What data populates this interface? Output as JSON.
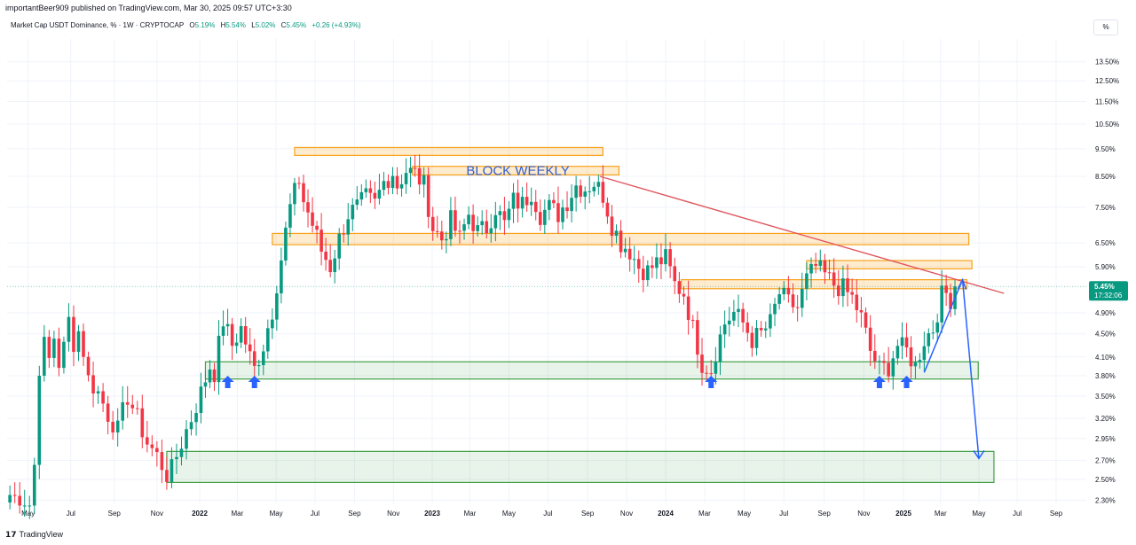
{
  "publish_line": "importantBeer909 published on TradingView.com, Mar 30, 2025 09:57 UTC+3:30",
  "legend": {
    "title": "Market Cap USDT Dominance, % · 1W · CRYPTOCAP",
    "o_label": "O",
    "o": "5.19%",
    "h_label": "H",
    "h": "5.54%",
    "l_label": "L",
    "l": "5.02%",
    "c_label": "C",
    "c": "5.45%",
    "change": "+0.26 (+4.93%)"
  },
  "scale_button": "%",
  "footer_brand": "TradingView",
  "colors": {
    "up": "#089981",
    "down": "#f23645",
    "zone_orange": "#f7a21b",
    "zone_green": "#43a047",
    "trendline": "#e0575f",
    "arrow_blue": "#2962ff",
    "price_label_bg": "#089981"
  },
  "chart_data": {
    "type": "candlestick",
    "title": "Market Cap USDT Dominance, % · 1W · CRYPTOCAP",
    "interval": "1W",
    "y_scale": "log",
    "ylim": [
      2.27,
      14.8
    ],
    "y_ticks": [
      "13.50%",
      "12.50%",
      "11.50%",
      "10.50%",
      "9.50%",
      "8.50%",
      "7.50%",
      "6.50%",
      "5.90%",
      "4.90%",
      "4.50%",
      "4.10%",
      "3.80%",
      "3.50%",
      "3.20%",
      "2.95%",
      "2.70%",
      "2.50%",
      "2.30%"
    ],
    "x_ticks": [
      "May",
      "Jul",
      "Sep",
      "Nov",
      "2022",
      "Mar",
      "May",
      "Jul",
      "Sep",
      "Nov",
      "2023",
      "Mar",
      "May",
      "Jul",
      "Sep",
      "Nov",
      "2024",
      "Mar",
      "May",
      "Jul",
      "Sep",
      "Nov",
      "2025",
      "Mar",
      "May",
      "Jul",
      "Sep"
    ],
    "last_price_label": "5.45%",
    "countdown_label": "17:32:06",
    "last_price": 5.45,
    "annotation": "BLOCK WEEKLY",
    "close_path": [
      [
        "2021-04-05",
        2.35
      ],
      [
        "2021-04-26",
        2.28
      ],
      [
        "2021-05-03",
        2.2
      ],
      [
        "2021-05-10",
        2.65
      ],
      [
        "2021-05-17",
        3.95
      ],
      [
        "2021-05-24",
        4.3
      ],
      [
        "2021-05-31",
        4.05
      ],
      [
        "2021-06-07",
        4.45
      ],
      [
        "2021-06-14",
        4.0
      ],
      [
        "2021-06-21",
        4.25
      ],
      [
        "2021-06-28",
        4.75
      ],
      [
        "2021-07-05",
        4.35
      ],
      [
        "2021-07-12",
        4.55
      ],
      [
        "2021-07-19",
        4.2
      ],
      [
        "2021-07-26",
        3.75
      ],
      [
        "2021-08-09",
        3.55
      ],
      [
        "2021-08-23",
        3.25
      ],
      [
        "2021-09-06",
        3.05
      ],
      [
        "2021-09-20",
        3.5
      ],
      [
        "2021-10-04",
        3.2
      ],
      [
        "2021-10-18",
        2.9
      ],
      [
        "2021-11-01",
        2.75
      ],
      [
        "2021-11-15",
        2.55
      ],
      [
        "2021-11-22",
        2.6
      ],
      [
        "2021-12-06",
        2.9
      ],
      [
        "2021-12-20",
        3.2
      ],
      [
        "2022-01-03",
        3.55
      ],
      [
        "2022-01-17",
        3.95
      ],
      [
        "2022-01-24",
        3.85
      ],
      [
        "2022-02-07",
        4.75
      ],
      [
        "2022-02-21",
        4.3
      ],
      [
        "2022-03-07",
        4.6
      ],
      [
        "2022-03-21",
        4.1
      ],
      [
        "2022-03-28",
        3.9
      ],
      [
        "2022-04-11",
        4.3
      ],
      [
        "2022-04-25",
        4.95
      ],
      [
        "2022-05-09",
        6.1
      ],
      [
        "2022-05-16",
        6.8
      ],
      [
        "2022-05-23",
        7.5
      ],
      [
        "2022-06-06",
        8.4
      ],
      [
        "2022-06-13",
        7.7
      ],
      [
        "2022-06-27",
        7.0
      ],
      [
        "2022-07-11",
        6.3
      ],
      [
        "2022-07-25",
        5.9
      ],
      [
        "2022-08-08",
        6.6
      ],
      [
        "2022-08-22",
        7.3
      ],
      [
        "2022-09-05",
        7.5
      ],
      [
        "2022-09-19",
        7.8
      ],
      [
        "2022-10-03",
        7.6
      ],
      [
        "2022-10-17",
        8.3
      ],
      [
        "2022-10-31",
        8.65
      ],
      [
        "2022-11-07",
        8.2
      ],
      [
        "2022-11-21",
        8.7
      ],
      [
        "2022-12-05",
        8.6
      ],
      [
        "2022-12-19",
        8.2
      ],
      [
        "2023-01-02",
        6.9
      ],
      [
        "2023-01-16",
        6.6
      ],
      [
        "2023-01-30",
        7.1
      ],
      [
        "2023-02-13",
        6.6
      ],
      [
        "2023-02-27",
        7.3
      ],
      [
        "2023-03-13",
        6.8
      ],
      [
        "2023-03-27",
        6.9
      ],
      [
        "2023-04-10",
        7.5
      ],
      [
        "2023-04-24",
        7.0
      ],
      [
        "2023-05-08",
        7.7
      ],
      [
        "2023-05-22",
        7.6
      ],
      [
        "2023-06-05",
        8.0
      ],
      [
        "2023-06-19",
        7.3
      ],
      [
        "2023-07-03",
        7.5
      ],
      [
        "2023-07-17",
        7.3
      ],
      [
        "2023-07-31",
        7.7
      ],
      [
        "2023-08-14",
        8.2
      ],
      [
        "2023-08-28",
        8.1
      ],
      [
        "2023-09-11",
        8.3
      ],
      [
        "2023-09-25",
        7.9
      ],
      [
        "2023-10-09",
        7.0
      ],
      [
        "2023-10-23",
        6.5
      ],
      [
        "2023-11-06",
        6.3
      ],
      [
        "2023-11-20",
        5.9
      ],
      [
        "2023-12-04",
        5.8
      ],
      [
        "2023-12-18",
        6.0
      ],
      [
        "2024-01-01",
        6.1
      ],
      [
        "2024-01-15",
        5.5
      ],
      [
        "2024-01-29",
        5.3
      ],
      [
        "2024-02-12",
        4.6
      ],
      [
        "2024-02-26",
        4.0
      ],
      [
        "2024-03-11",
        3.9
      ],
      [
        "2024-03-18",
        4.2
      ],
      [
        "2024-04-01",
        4.7
      ],
      [
        "2024-04-15",
        4.9
      ],
      [
        "2024-04-29",
        4.7
      ],
      [
        "2024-05-13",
        4.4
      ],
      [
        "2024-05-27",
        4.5
      ],
      [
        "2024-06-10",
        4.7
      ],
      [
        "2024-06-24",
        5.3
      ],
      [
        "2024-07-08",
        5.1
      ],
      [
        "2024-07-22",
        5.0
      ],
      [
        "2024-08-05",
        5.6
      ],
      [
        "2024-08-19",
        5.9
      ],
      [
        "2024-09-02",
        5.7
      ],
      [
        "2024-09-16",
        5.5
      ],
      [
        "2024-09-30",
        5.4
      ],
      [
        "2024-10-14",
        5.2
      ],
      [
        "2024-10-28",
        4.8
      ],
      [
        "2024-11-11",
        4.2
      ],
      [
        "2024-11-25",
        3.9
      ],
      [
        "2024-12-09",
        3.95
      ],
      [
        "2024-12-23",
        4.3
      ],
      [
        "2025-01-06",
        4.2
      ],
      [
        "2025-01-20",
        3.95
      ],
      [
        "2025-02-03",
        4.4
      ],
      [
        "2025-02-17",
        4.6
      ],
      [
        "2025-03-03",
        5.25
      ],
      [
        "2025-03-10",
        5.3
      ],
      [
        "2025-03-17",
        5.19
      ],
      [
        "2025-03-24",
        5.45
      ]
    ],
    "resistance_zones": [
      {
        "from": "2022-05-30",
        "to": "2023-09-25",
        "y": [
          9.25,
          9.55
        ]
      },
      {
        "from": "2022-12-01",
        "to": "2023-10-20",
        "y": [
          8.55,
          8.85
        ]
      },
      {
        "from": "2022-04-25",
        "to": "2025-04-15",
        "y": [
          6.45,
          6.75
        ]
      },
      {
        "from": "2024-08-05",
        "to": "2025-04-20",
        "y": [
          5.85,
          6.05
        ]
      },
      {
        "from": "2024-01-25",
        "to": "2025-04-12",
        "y": [
          5.4,
          5.6
        ]
      }
    ],
    "support_zones": [
      {
        "from": "2022-01-10",
        "to": "2025-04-30",
        "y": [
          3.75,
          4.02
        ]
      },
      {
        "from": "2021-11-15",
        "to": "2025-05-25",
        "y": [
          2.47,
          2.8
        ]
      }
    ],
    "trendline": [
      [
        "2023-09-20",
        8.5
      ],
      [
        "2025-06-10",
        5.3
      ]
    ],
    "projection": [
      [
        "2025-02-03",
        3.85
      ],
      [
        "2025-04-05",
        5.6
      ],
      [
        "2025-05-01",
        2.72
      ]
    ],
    "bounce_markers": [
      "2022-02-14",
      "2022-03-28",
      "2024-03-11",
      "2024-11-25",
      "2025-01-06"
    ]
  }
}
